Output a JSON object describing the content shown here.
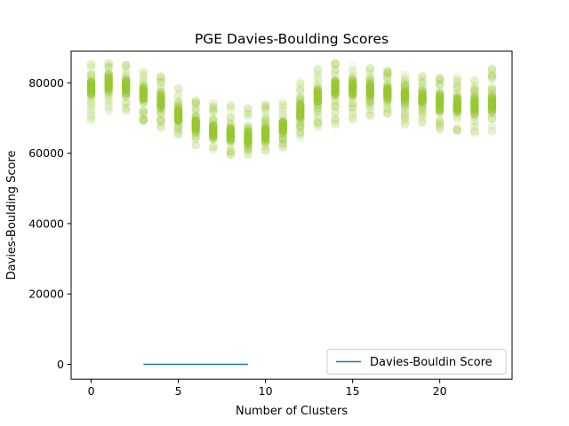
{
  "chart_data": {
    "type": "scatter",
    "title": "PGE Davies-Boulding Scores",
    "xlabel": "Number of Clusters",
    "ylabel": "Davies-Boulding Score",
    "xlim": [
      -1.15,
      24.15
    ],
    "ylim": [
      -4200,
      89000
    ],
    "xticks": [
      0,
      5,
      10,
      15,
      20
    ],
    "yticks": [
      0,
      20000,
      40000,
      60000,
      80000
    ],
    "grid": false,
    "legend_position": "bottom-right",
    "colors": {
      "scatter": "#9acd32",
      "line": "#1f77b4"
    },
    "series": [
      {
        "kind": "scatter",
        "clusters": [
          0,
          1,
          2,
          3,
          4,
          5,
          6,
          7,
          8,
          9,
          10,
          11,
          12,
          13,
          14,
          15,
          16,
          17,
          18,
          19,
          20,
          21,
          22,
          23
        ],
        "center": [
          78500,
          80000,
          79000,
          77000,
          74500,
          71000,
          68000,
          66000,
          65000,
          64500,
          65500,
          67500,
          72000,
          76500,
          78500,
          78500,
          78000,
          77500,
          76500,
          75500,
          74500,
          74000,
          73500,
          74000
        ],
        "low": [
          69000,
          71000,
          71500,
          69000,
          67000,
          64000,
          62000,
          60500,
          59500,
          59000,
          60000,
          61000,
          64000,
          67000,
          68000,
          69000,
          69500,
          70000,
          68000,
          67500,
          66500,
          66000,
          65500,
          66000
        ],
        "high": [
          85500,
          86000,
          85500,
          84000,
          82000,
          78500,
          75500,
          74500,
          74000,
          73500,
          74000,
          75500,
          80500,
          84500,
          86000,
          85000,
          84500,
          84000,
          83000,
          82500,
          82000,
          82000,
          81500,
          84500
        ]
      },
      {
        "kind": "line",
        "name": "Davies-Bouldin Score",
        "x": [
          3,
          4,
          5,
          6,
          7,
          8,
          9
        ],
        "y": [
          0,
          0,
          0,
          0,
          0,
          0,
          0
        ]
      }
    ]
  }
}
